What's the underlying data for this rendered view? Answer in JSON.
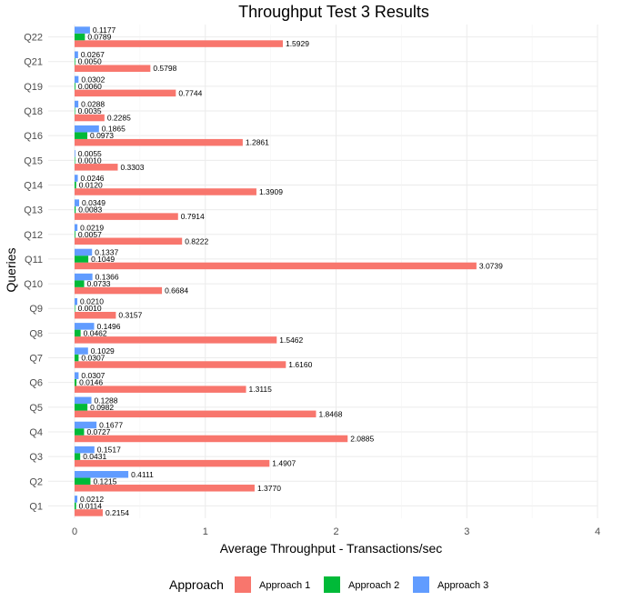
{
  "chart_data": {
    "type": "bar",
    "orientation": "horizontal",
    "title": "Throughput Test 3 Results",
    "xlabel": "Average Throughput - Transactions/sec",
    "ylabel": "Queries",
    "xlim": [
      0,
      4
    ],
    "xticks": [
      "0",
      "1",
      "2",
      "3",
      "4"
    ],
    "grid": true,
    "legend": {
      "title": "Approach",
      "position": "bottom"
    },
    "categories": [
      "Q1",
      "Q2",
      "Q3",
      "Q4",
      "Q5",
      "Q6",
      "Q7",
      "Q8",
      "Q9",
      "Q10",
      "Q11",
      "Q12",
      "Q13",
      "Q14",
      "Q15",
      "Q16",
      "Q18",
      "Q19",
      "Q21",
      "Q22"
    ],
    "series": [
      {
        "name": "Approach 1",
        "color": "#F8766D",
        "values": [
          0.2154,
          1.377,
          1.4907,
          2.0885,
          1.8468,
          1.3115,
          1.616,
          1.5462,
          0.3157,
          0.6684,
          3.0739,
          0.8222,
          0.7914,
          1.3909,
          0.3303,
          1.2861,
          0.2285,
          0.7744,
          0.5798,
          1.5929
        ],
        "labels": [
          "0.2154",
          "1.3770",
          "1.4907",
          "2.0885",
          "1.8468",
          "1.3115",
          "1.6160",
          "1.5462",
          "0.3157",
          "0.6684",
          "3.0739",
          "0.8222",
          "0.7914",
          "1.3909",
          "0.3303",
          "1.2861",
          "0.2285",
          "0.7744",
          "0.5798",
          "1.5929"
        ]
      },
      {
        "name": "Approach 2",
        "color": "#00BA38",
        "values": [
          0.0114,
          0.1215,
          0.0431,
          0.0727,
          0.0982,
          0.0146,
          0.0307,
          0.0462,
          0.001,
          0.0733,
          0.1049,
          0.0057,
          0.0083,
          0.012,
          0.001,
          0.0973,
          0.0035,
          0.006,
          0.005,
          0.0789
        ],
        "labels": [
          "0.0114",
          "0.1215",
          "0.0431",
          "0.0727",
          "0.0982",
          "0.0146",
          "0.0307",
          "0.0462",
          "0.0010",
          "0.0733",
          "0.1049",
          "0.0057",
          "0.0083",
          "0.0120",
          "0.0010",
          "0.0973",
          "0.0035",
          "0.0060",
          "0.0050",
          "0.0789"
        ]
      },
      {
        "name": "Approach 3",
        "color": "#619CFF",
        "values": [
          0.0212,
          0.4111,
          0.1517,
          0.1677,
          0.1288,
          0.0307,
          0.1029,
          0.1496,
          0.021,
          0.1366,
          0.1337,
          0.0219,
          0.0349,
          0.0246,
          0.0055,
          0.1865,
          0.0288,
          0.0302,
          0.0267,
          0.1177
        ],
        "labels": [
          "0.0212",
          "0.4111",
          "0.1517",
          "0.1677",
          "0.1288",
          "0.0307",
          "0.1029",
          "0.1496",
          "0.0210",
          "0.1366",
          "0.1337",
          "0.0219",
          "0.0349",
          "0.0246",
          "0.0055",
          "0.1865",
          "0.0288",
          "0.0302",
          "0.0267",
          "0.1177"
        ]
      }
    ]
  }
}
